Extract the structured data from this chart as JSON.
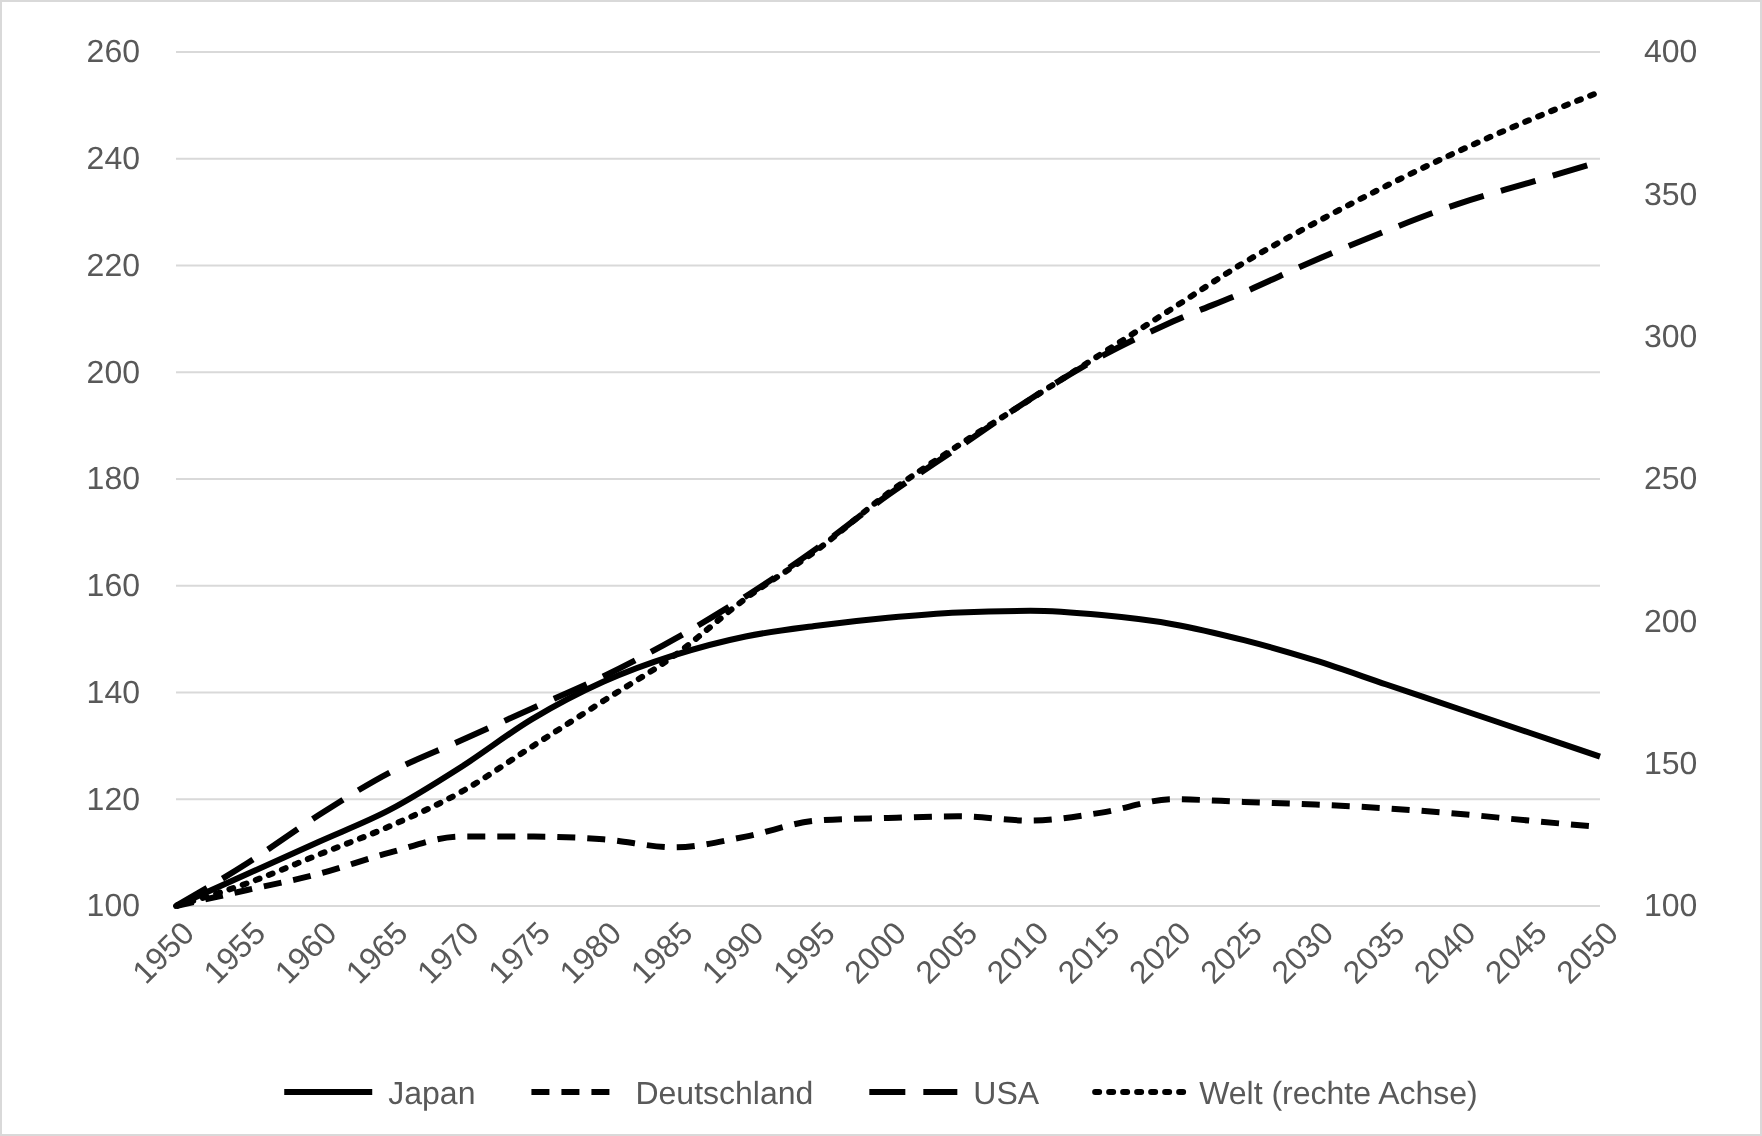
{
  "chart_data": {
    "type": "line",
    "x": [
      1950,
      1955,
      1960,
      1965,
      1970,
      1975,
      1980,
      1985,
      1990,
      1995,
      2000,
      2005,
      2010,
      2015,
      2020,
      2025,
      2030,
      2035,
      2040,
      2045,
      2050
    ],
    "series": [
      {
        "name": "Japan",
        "color": "#000000",
        "line_style": "solid",
        "values": [
          100,
          106,
          112,
          118,
          126,
          135,
          142,
          147,
          150.5,
          152.5,
          154,
          155,
          155.3,
          154.5,
          152.8,
          149.8,
          146,
          141.5,
          137,
          132.5,
          128
        ]
      },
      {
        "name": "Deutschland",
        "color": "#000000",
        "line_style": "dashed",
        "values": [
          100,
          103,
          106,
          110,
          113,
          113,
          112.5,
          111,
          113,
          116,
          116.5,
          116.8,
          116,
          117.5,
          120,
          119.5,
          119,
          118.3,
          117.3,
          116,
          114.8
        ]
      },
      {
        "name": "USA",
        "color": "#000000",
        "line_style": "longdash",
        "values": [
          100,
          108,
          117,
          125,
          131,
          137,
          143,
          150,
          158,
          167,
          177,
          186,
          195,
          203,
          209.5,
          215,
          221,
          226.5,
          231.5,
          235.5,
          239.5
        ]
      },
      {
        "name": "Welt (rechte Achse)",
        "color": "#000000",
        "line_style": "dotted",
        "axis": "y2",
        "values": [
          100,
          108,
          118,
          128,
          140,
          156,
          172,
          188,
          208,
          225,
          245,
          262,
          278,
          294,
          310,
          326,
          340,
          353,
          365,
          376,
          386
        ]
      }
    ],
    "xlim": [
      1950,
      2050
    ],
    "xticks": [
      1950,
      1955,
      1960,
      1965,
      1970,
      1975,
      1980,
      1985,
      1990,
      1995,
      2000,
      2005,
      2010,
      2015,
      2020,
      2025,
      2030,
      2035,
      2040,
      2045,
      2050
    ],
    "ylim": [
      100,
      260
    ],
    "yticks": [
      100,
      120,
      140,
      160,
      180,
      200,
      220,
      240,
      260
    ],
    "y2lim": [
      100,
      400
    ],
    "y2ticks": [
      100,
      150,
      200,
      250,
      300,
      350,
      400
    ],
    "grid": "y",
    "legend": "bottom"
  }
}
